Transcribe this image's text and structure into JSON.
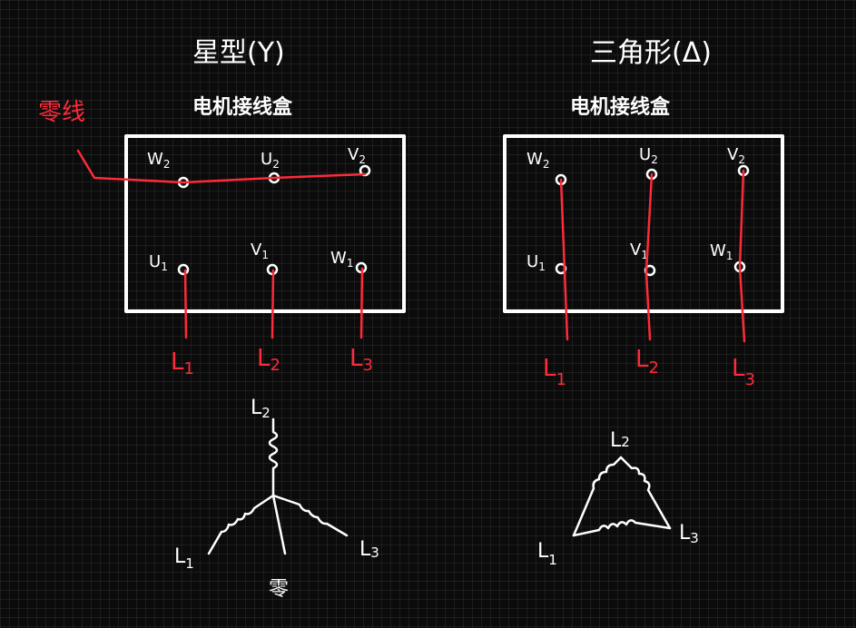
{
  "star": {
    "title": "星型(Y)",
    "box_title": "电机接线盒",
    "neutral_label": "零线",
    "neutral_end_label": "零",
    "terminals": {
      "w2": {
        "letter": "W",
        "sub": "2"
      },
      "u2": {
        "letter": "U",
        "sub": "2"
      },
      "v2": {
        "letter": "V",
        "sub": "2"
      },
      "u1": {
        "letter": "U",
        "sub": "1"
      },
      "v1": {
        "letter": "V",
        "sub": "1"
      },
      "w1": {
        "letter": "W",
        "sub": "1"
      }
    },
    "lines": [
      {
        "letter": "L",
        "sub": "1"
      },
      {
        "letter": "L",
        "sub": "2"
      },
      {
        "letter": "L",
        "sub": "3"
      }
    ]
  },
  "delta": {
    "title": "三角形(Δ)",
    "box_title": "电机接线盒",
    "terminals": {
      "w2": {
        "letter": "W",
        "sub": "2"
      },
      "u2": {
        "letter": "U",
        "sub": "2"
      },
      "v2": {
        "letter": "V",
        "sub": "2"
      },
      "u1": {
        "letter": "U",
        "sub": "1"
      },
      "v1": {
        "letter": "V",
        "sub": "1"
      },
      "w1": {
        "letter": "W",
        "sub": "1"
      }
    },
    "lines": [
      {
        "letter": "L",
        "sub": "1"
      },
      {
        "letter": "L",
        "sub": "2"
      },
      {
        "letter": "L",
        "sub": "3"
      }
    ]
  },
  "colors": {
    "background": "#0b0b0b",
    "chalk": "#ffffff",
    "wire": "#ff2a3a"
  }
}
